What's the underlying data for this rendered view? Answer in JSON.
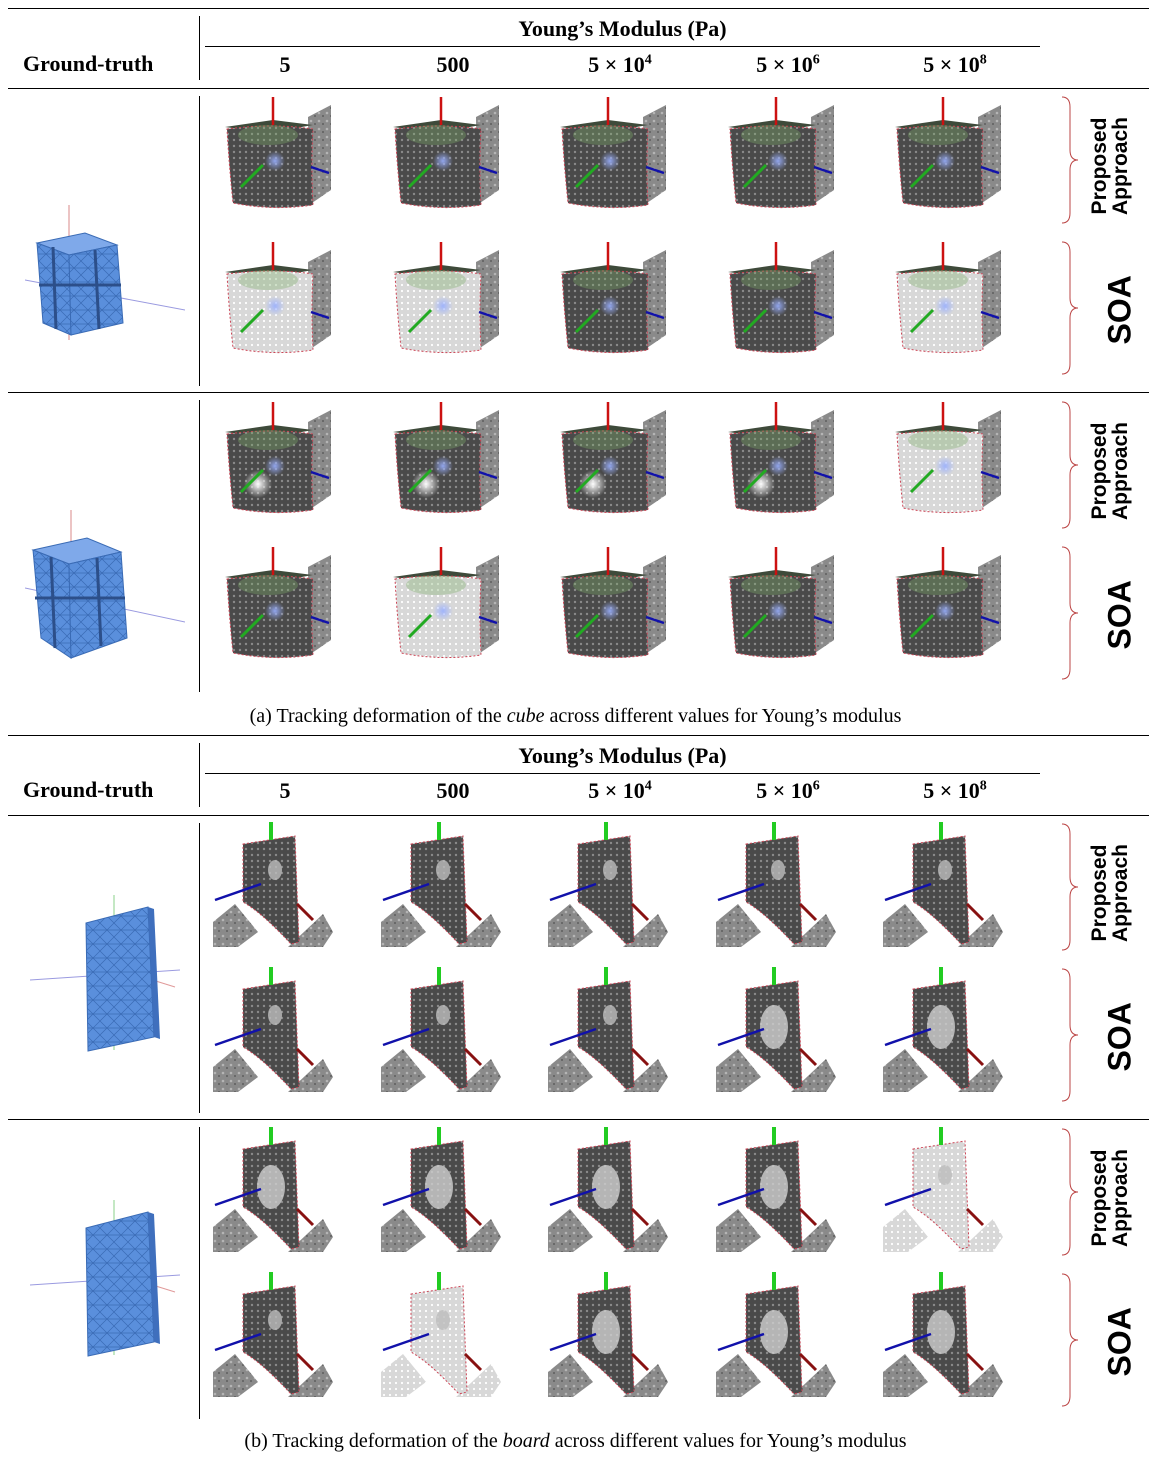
{
  "header": {
    "title": "Young’s Modulus (Pa)",
    "ground_truth": "Ground-truth",
    "columns": [
      {
        "base": "5",
        "exp": ""
      },
      {
        "base": "500",
        "exp": ""
      },
      {
        "base": "5 × 10",
        "exp": "4"
      },
      {
        "base": "5 × 10",
        "exp": "6"
      },
      {
        "base": "5 × 10",
        "exp": "8"
      }
    ]
  },
  "row_labels": {
    "proposed_line1": "Proposed",
    "proposed_line2": "Approach",
    "soa": "SOA"
  },
  "panel_a": {
    "caption_prefix": "(a) Tracking deformation of the ",
    "caption_object": "cube",
    "caption_suffix": " across different values for Young’s modulus"
  },
  "panel_b": {
    "caption_prefix": "(b) Tracking deformation of the ",
    "caption_object": "board",
    "caption_suffix": " across different values for Young’s modulus"
  },
  "colors": {
    "mesh_blue": "#4f86d6",
    "axis_red": "#cc1111",
    "axis_green": "#22aa22",
    "axis_blue": "#1111aa",
    "render_gray": "#555555"
  }
}
